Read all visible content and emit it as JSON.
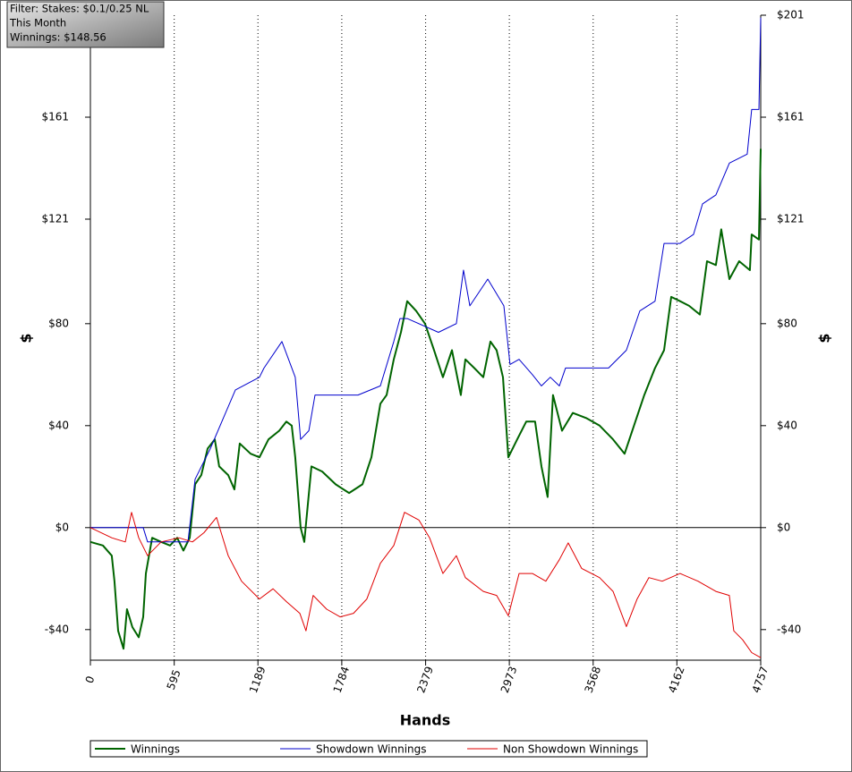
{
  "chart_data": {
    "type": "line",
    "annotation": [
      "Filter: Stakes: $0.1/0.25 NL",
      "This Month",
      "Winnings: $148.56"
    ],
    "xlabel": "Hands",
    "ylabel": "$",
    "y2label": "$",
    "xlim": [
      0,
      4757
    ],
    "xticks": [
      0,
      595,
      1189,
      1784,
      2379,
      2973,
      3568,
      4162,
      4757
    ],
    "ylim": [
      -52,
      201
    ],
    "yticks": [
      {
        "value": -40,
        "label": "-$40"
      },
      {
        "value": 0,
        "label": "$0"
      },
      {
        "value": 40,
        "label": "$40"
      },
      {
        "value": 80,
        "label": "$80"
      },
      {
        "value": 121,
        "label": "$121"
      },
      {
        "value": 161,
        "label": "$161"
      },
      {
        "value": 201,
        "label": "$201"
      }
    ],
    "grid": true,
    "series": [
      {
        "name": "Winnings",
        "color": "#006400",
        "width": 2,
        "x": [
          0,
          89,
          152,
          171,
          197,
          235,
          260,
          298,
          343,
          375,
          394,
          438,
          502,
          565,
          616,
          660,
          705,
          743,
          787,
          832,
          883,
          914,
          978,
          1022,
          1060,
          1137,
          1200,
          1264,
          1340,
          1391,
          1429,
          1454,
          1492,
          1518,
          1569,
          1645,
          1740,
          1836,
          1931,
          1994,
          2058,
          2102,
          2153,
          2204,
          2248,
          2312,
          2375,
          2439,
          2502,
          2566,
          2629,
          2661,
          2724,
          2788,
          2839,
          2883,
          2928,
          2966,
          3029,
          3093,
          3156,
          3201,
          3245,
          3283,
          3347,
          3423,
          3518,
          3614,
          3709,
          3791,
          3867,
          3931,
          4007,
          4071,
          4122,
          4185,
          4249,
          4325,
          4376,
          4439,
          4477,
          4535,
          4604,
          4680,
          4693,
          4744,
          4757
        ],
        "values": [
          -5.6,
          -7,
          -11,
          -21,
          -40.5,
          -47.5,
          -32,
          -39,
          -43,
          -35,
          -18,
          -4,
          -5.6,
          -7,
          -4,
          -9,
          -4,
          17,
          20.6,
          31,
          34.6,
          24,
          20.6,
          15,
          33,
          29,
          27.6,
          34.6,
          38,
          41.6,
          40,
          27.6,
          0,
          -5.6,
          24,
          22,
          17,
          13.6,
          17,
          27.6,
          48.6,
          52,
          66,
          76.6,
          88.8,
          85,
          80,
          69.6,
          59,
          69.6,
          52,
          66,
          62.6,
          59,
          73,
          69.6,
          59,
          27.6,
          34.6,
          41.6,
          41.6,
          24,
          12,
          52,
          38,
          45,
          43,
          40,
          34.6,
          29,
          41.6,
          52,
          62.6,
          69.6,
          90.5,
          88.8,
          87,
          83.6,
          104.5,
          103,
          117,
          97.5,
          104.5,
          101,
          115,
          113,
          148.56
        ]
      },
      {
        "name": "Showdown Winnings",
        "color": "#0000cd",
        "width": 1,
        "x": [
          0,
          375,
          406,
          692,
          743,
          851,
          1029,
          1200,
          1232,
          1359,
          1454,
          1492,
          1550,
          1594,
          1899,
          2058,
          2153,
          2197,
          2248,
          2470,
          2597,
          2648,
          2693,
          2820,
          2934,
          2978,
          3042,
          3137,
          3201,
          3264,
          3328,
          3372,
          3677,
          3804,
          3899,
          4007,
          4071,
          4185,
          4280,
          4344,
          4439,
          4535,
          4661,
          4693,
          4744,
          4757
        ],
        "values": [
          0,
          0,
          -5.6,
          -5.6,
          19,
          31,
          54,
          59,
          62.6,
          73,
          59,
          34.6,
          38,
          52,
          52,
          55.6,
          73,
          82,
          82,
          76.6,
          80,
          101,
          87,
          97.5,
          87,
          64,
          66,
          60,
          55.6,
          59,
          55.6,
          62.6,
          62.6,
          69.6,
          85,
          88.8,
          111.5,
          111.5,
          115,
          127,
          130.5,
          143,
          146.5,
          164,
          164,
          200
        ]
      },
      {
        "name": "Non Showdown Winnings",
        "color": "#e00000",
        "width": 1,
        "x": [
          0,
          152,
          248,
          292,
          343,
          406,
          502,
          629,
          724,
          806,
          895,
          978,
          1073,
          1200,
          1296,
          1391,
          1486,
          1530,
          1581,
          1677,
          1772,
          1867,
          1962,
          2058,
          2153,
          2229,
          2331,
          2407,
          2502,
          2597,
          2661,
          2788,
          2883,
          2966,
          3042,
          3137,
          3232,
          3328,
          3391,
          3486,
          3613,
          3709,
          3804,
          3880,
          3963,
          4058,
          4185,
          4312,
          4439,
          4534,
          4566,
          4629,
          4693,
          4757
        ],
        "values": [
          0,
          -4,
          -5.6,
          6,
          -4,
          -11,
          -5.6,
          -4,
          -5.6,
          -2,
          4,
          -11,
          -21,
          -28,
          -24,
          -29,
          -33.6,
          -40.5,
          -26.6,
          -32,
          -35,
          -33.6,
          -28,
          -14,
          -7,
          6,
          3,
          -4,
          -18,
          -11,
          -19.6,
          -25,
          -26.6,
          -34.6,
          -18,
          -18,
          -21,
          -12.6,
          -6,
          -16,
          -19.6,
          -25,
          -38.8,
          -28,
          -19.6,
          -21,
          -18,
          -21,
          -25,
          -26.6,
          -40.5,
          -44,
          -49,
          -51
        ]
      }
    ]
  }
}
